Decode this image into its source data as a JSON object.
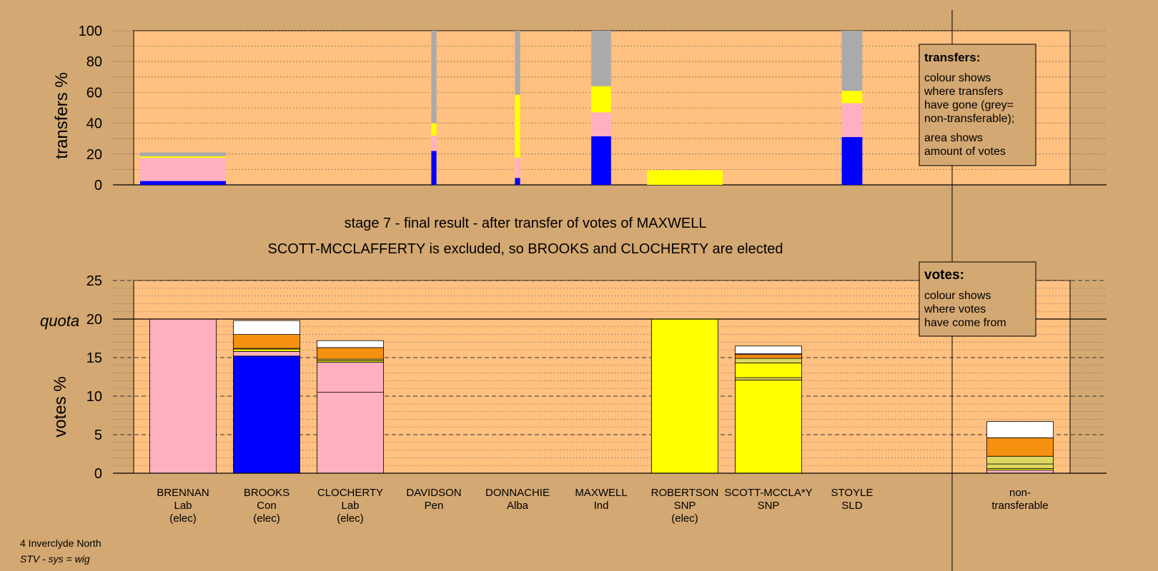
{
  "header": {
    "line1": "stage 7 - final result - after transfer of votes of MAXWELL",
    "line2": "SCOTT-MCCLAFFERTY is excluded, so BROOKS and CLOCHERTY are elected"
  },
  "footer": {
    "line1": "4 Inverclyde North",
    "line2": "STV - sys = wig"
  },
  "legends": {
    "transfers": {
      "title": "transfers:",
      "lines1": [
        "colour shows",
        "where transfers",
        "have gone (grey=",
        "non-transferable);"
      ],
      "lines2": [
        "area shows",
        "amount of votes"
      ]
    },
    "votes": {
      "title": "votes:",
      "lines": [
        "colour shows",
        "where votes",
        "have come from"
      ]
    }
  },
  "colors": {
    "background": "#d4a872",
    "plot": "#ffc080",
    "Lab": "#ffb0c0",
    "Con": "#0000ff",
    "Pen": "#ffffff",
    "Alba": "#f59010",
    "Ind": "#ddd860",
    "SNP": "#ffff00",
    "SLD": "#f5c060",
    "nontransferable": "#aaaaaa"
  },
  "candidates": [
    {
      "name": "BRENNAN",
      "party": "Lab",
      "status": "(elec)"
    },
    {
      "name": "BROOKS",
      "party": "Con",
      "status": "(elec)"
    },
    {
      "name": "CLOCHERTY",
      "party": "Lab",
      "status": "(elec)"
    },
    {
      "name": "DAVIDSON",
      "party": "Pen",
      "status": ""
    },
    {
      "name": "DONNACHIE",
      "party": "Alba",
      "status": ""
    },
    {
      "name": "MAXWELL",
      "party": "Ind",
      "status": ""
    },
    {
      "name": "ROBERTSON",
      "party": "SNP",
      "status": "(elec)"
    },
    {
      "name": "SCOTT-MCCLA*Y",
      "party": "SNP",
      "status": ""
    },
    {
      "name": "STOYLE",
      "party": "SLD",
      "status": ""
    }
  ],
  "nontransferable_label": [
    "non-",
    "transferable"
  ],
  "chart_data": [
    {
      "type": "bar",
      "id": "transfers",
      "ylabel": "transfers %",
      "ylim": [
        0,
        100
      ],
      "yticks": [
        0,
        20,
        40,
        60,
        80,
        100
      ],
      "grid": true,
      "bars": [
        {
          "candidate": "BRENNAN",
          "width_share": 1.0,
          "segments": [
            {
              "to": "Con",
              "value": 2.5
            },
            {
              "to": "Lab",
              "value": 15
            },
            {
              "to": "SNP",
              "value": 1
            },
            {
              "to": "nontransferable",
              "value": 2.5
            }
          ]
        },
        {
          "candidate": "DAVIDSON",
          "width_share": 0.06,
          "segments": [
            {
              "to": "Con",
              "value": 22
            },
            {
              "to": "Lab",
              "value": 10
            },
            {
              "to": "SNP",
              "value": 8
            },
            {
              "to": "nontransferable",
              "value": 60
            }
          ]
        },
        {
          "candidate": "DONNACHIE",
          "width_share": 0.06,
          "segments": [
            {
              "to": "Con",
              "value": 4.5
            },
            {
              "to": "Lab",
              "value": 13
            },
            {
              "to": "SNP",
              "value": 41
            },
            {
              "to": "nontransferable",
              "value": 41.5
            }
          ]
        },
        {
          "candidate": "MAXWELL",
          "width_share": 0.23,
          "segments": [
            {
              "to": "Con",
              "value": 31.5
            },
            {
              "to": "Lab",
              "value": 15.5
            },
            {
              "to": "SNP",
              "value": 17
            },
            {
              "to": "nontransferable",
              "value": 36
            }
          ]
        },
        {
          "candidate": "ROBERTSON",
          "width_share": 0.88,
          "segments": [
            {
              "to": "SNP",
              "value": 9.5
            }
          ]
        },
        {
          "candidate": "STOYLE",
          "width_share": 0.24,
          "segments": [
            {
              "to": "Con",
              "value": 31
            },
            {
              "to": "Lab",
              "value": 22
            },
            {
              "to": "SNP",
              "value": 8
            },
            {
              "to": "nontransferable",
              "value": 39
            }
          ]
        }
      ]
    },
    {
      "type": "bar",
      "id": "votes",
      "ylabel": "votes %",
      "quota_label": "quota",
      "quota": 20,
      "ylim": [
        0,
        25
      ],
      "yticks": [
        0,
        5,
        10,
        15,
        20,
        25
      ],
      "grid": true,
      "bars": [
        {
          "candidate": "BRENNAN",
          "segments": [
            {
              "from": "Lab",
              "value": 20
            }
          ]
        },
        {
          "candidate": "BROOKS",
          "segments": [
            {
              "from": "Con",
              "value": 15.2
            },
            {
              "from": "Lab",
              "value": 0.6
            },
            {
              "from": "SNP",
              "value": 0.3
            },
            {
              "from": "Ind",
              "value": 0.1
            },
            {
              "from": "Alba",
              "value": 1.8
            },
            {
              "from": "Pen",
              "value": 1.8
            }
          ]
        },
        {
          "candidate": "CLOCHERTY",
          "segments": [
            {
              "from": "Lab",
              "value": 10.5
            },
            {
              "from": "Lab",
              "value": 3.9
            },
            {
              "from": "SNP",
              "value": 0.2
            },
            {
              "from": "Ind",
              "value": 0.2
            },
            {
              "from": "Alba",
              "value": 1.5
            },
            {
              "from": "Pen",
              "value": 0.9
            }
          ]
        },
        {
          "candidate": "DAVIDSON",
          "segments": []
        },
        {
          "candidate": "DONNACHIE",
          "segments": []
        },
        {
          "candidate": "MAXWELL",
          "segments": []
        },
        {
          "candidate": "ROBERTSON",
          "segments": [
            {
              "from": "SNP",
              "value": 20
            }
          ]
        },
        {
          "candidate": "SCOTT-MCCLA*Y",
          "segments": [
            {
              "from": "SNP",
              "value": 12.1
            },
            {
              "from": "Ind",
              "value": 0.3
            },
            {
              "from": "SNP",
              "value": 1.9
            },
            {
              "from": "Ind",
              "value": 0.6
            },
            {
              "from": "Alba",
              "value": 0.5
            },
            {
              "from": "Lab",
              "value": 0.1
            },
            {
              "from": "Pen",
              "value": 1.0
            }
          ]
        },
        {
          "candidate": "STOYLE",
          "segments": []
        },
        {
          "candidate": "non-transferable",
          "segments": [
            {
              "from": "Lab",
              "value": 0.4
            },
            {
              "from": "SNP",
              "value": 0.2
            },
            {
              "from": "Ind",
              "value": 0.6
            },
            {
              "from": "Ind",
              "value": 1.0
            },
            {
              "from": "Alba",
              "value": 2.4
            },
            {
              "from": "Pen",
              "value": 2.1
            }
          ]
        }
      ]
    }
  ]
}
